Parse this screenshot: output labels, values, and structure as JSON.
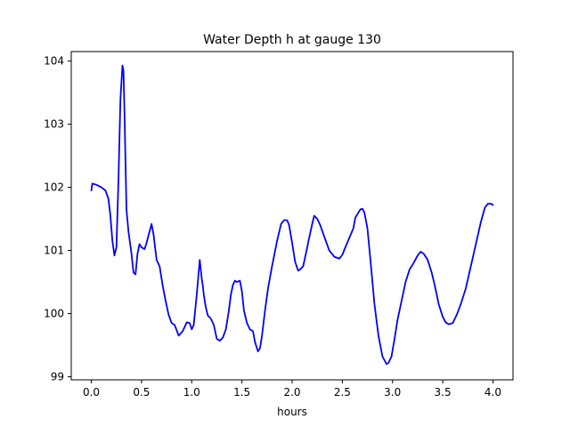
{
  "chart_data": {
    "type": "line",
    "title": "Water Depth h at gauge 130",
    "xlabel": "hours",
    "ylabel": "",
    "xlim": [
      -0.2,
      4.2
    ],
    "ylim": [
      98.95,
      104.15
    ],
    "grid": false,
    "xticks": [
      0.0,
      0.5,
      1.0,
      1.5,
      2.0,
      2.5,
      3.0,
      3.5,
      4.0
    ],
    "xtick_labels": [
      "0.0",
      "0.5",
      "1.0",
      "1.5",
      "2.0",
      "2.5",
      "3.0",
      "3.5",
      "4.0"
    ],
    "yticks": [
      99,
      100,
      101,
      102,
      103,
      104
    ],
    "ytick_labels": [
      "99",
      "100",
      "101",
      "102",
      "103",
      "104"
    ],
    "series": [
      {
        "color": "#0000ff",
        "x": [
          0.0,
          0.01,
          0.05,
          0.1,
          0.14,
          0.17,
          0.19,
          0.21,
          0.23,
          0.25,
          0.27,
          0.29,
          0.31,
          0.32,
          0.33,
          0.35,
          0.37,
          0.4,
          0.42,
          0.44,
          0.46,
          0.48,
          0.5,
          0.53,
          0.55,
          0.58,
          0.6,
          0.62,
          0.65,
          0.68,
          0.71,
          0.74,
          0.77,
          0.8,
          0.83,
          0.87,
          0.91,
          0.95,
          0.98,
          1.0,
          1.02,
          1.05,
          1.08,
          1.1,
          1.11,
          1.12,
          1.14,
          1.16,
          1.19,
          1.22,
          1.25,
          1.28,
          1.31,
          1.34,
          1.37,
          1.39,
          1.41,
          1.43,
          1.45,
          1.48,
          1.5,
          1.52,
          1.55,
          1.58,
          1.61,
          1.63,
          1.66,
          1.68,
          1.7,
          1.73,
          1.76,
          1.8,
          1.85,
          1.89,
          1.92,
          1.95,
          1.97,
          2.0,
          2.03,
          2.06,
          2.08,
          2.11,
          2.14,
          2.17,
          2.2,
          2.22,
          2.25,
          2.28,
          2.32,
          2.37,
          2.42,
          2.47,
          2.5,
          2.53,
          2.57,
          2.61,
          2.63,
          2.66,
          2.68,
          2.7,
          2.72,
          2.75,
          2.78,
          2.82,
          2.86,
          2.9,
          2.94,
          2.96,
          2.99,
          3.02,
          3.05,
          3.09,
          3.13,
          3.17,
          3.21,
          3.25,
          3.28,
          3.31,
          3.35,
          3.39,
          3.42,
          3.46,
          3.5,
          3.53,
          3.56,
          3.6,
          3.64,
          3.68,
          3.73,
          3.78,
          3.83,
          3.88,
          3.92,
          3.95,
          3.98,
          4.0
        ],
        "y": [
          101.95,
          102.06,
          102.04,
          102.0,
          101.95,
          101.82,
          101.55,
          101.15,
          100.92,
          101.05,
          102.1,
          103.4,
          103.93,
          103.85,
          103.2,
          101.65,
          101.3,
          100.95,
          100.65,
          100.62,
          100.95,
          101.1,
          101.05,
          101.02,
          101.12,
          101.3,
          101.42,
          101.25,
          100.85,
          100.75,
          100.45,
          100.2,
          99.98,
          99.85,
          99.82,
          99.65,
          99.72,
          99.86,
          99.85,
          99.75,
          99.82,
          100.3,
          100.85,
          100.55,
          100.45,
          100.3,
          100.1,
          99.97,
          99.92,
          99.82,
          99.6,
          99.57,
          99.62,
          99.75,
          100.05,
          100.3,
          100.45,
          100.52,
          100.5,
          100.52,
          100.35,
          100.05,
          99.85,
          99.75,
          99.72,
          99.55,
          99.4,
          99.45,
          99.65,
          100.05,
          100.4,
          100.75,
          101.15,
          101.42,
          101.48,
          101.48,
          101.4,
          101.12,
          100.82,
          100.68,
          100.7,
          100.75,
          100.97,
          101.2,
          101.42,
          101.55,
          101.5,
          101.4,
          101.22,
          101.0,
          100.9,
          100.87,
          100.93,
          101.05,
          101.2,
          101.35,
          101.52,
          101.6,
          101.65,
          101.66,
          101.6,
          101.35,
          100.85,
          100.15,
          99.65,
          99.32,
          99.2,
          99.22,
          99.32,
          99.6,
          99.9,
          100.2,
          100.5,
          100.7,
          100.8,
          100.92,
          100.98,
          100.95,
          100.85,
          100.65,
          100.45,
          100.15,
          99.95,
          99.86,
          99.83,
          99.85,
          99.98,
          100.15,
          100.4,
          100.75,
          101.1,
          101.45,
          101.68,
          101.74,
          101.74,
          101.72
        ]
      }
    ]
  }
}
